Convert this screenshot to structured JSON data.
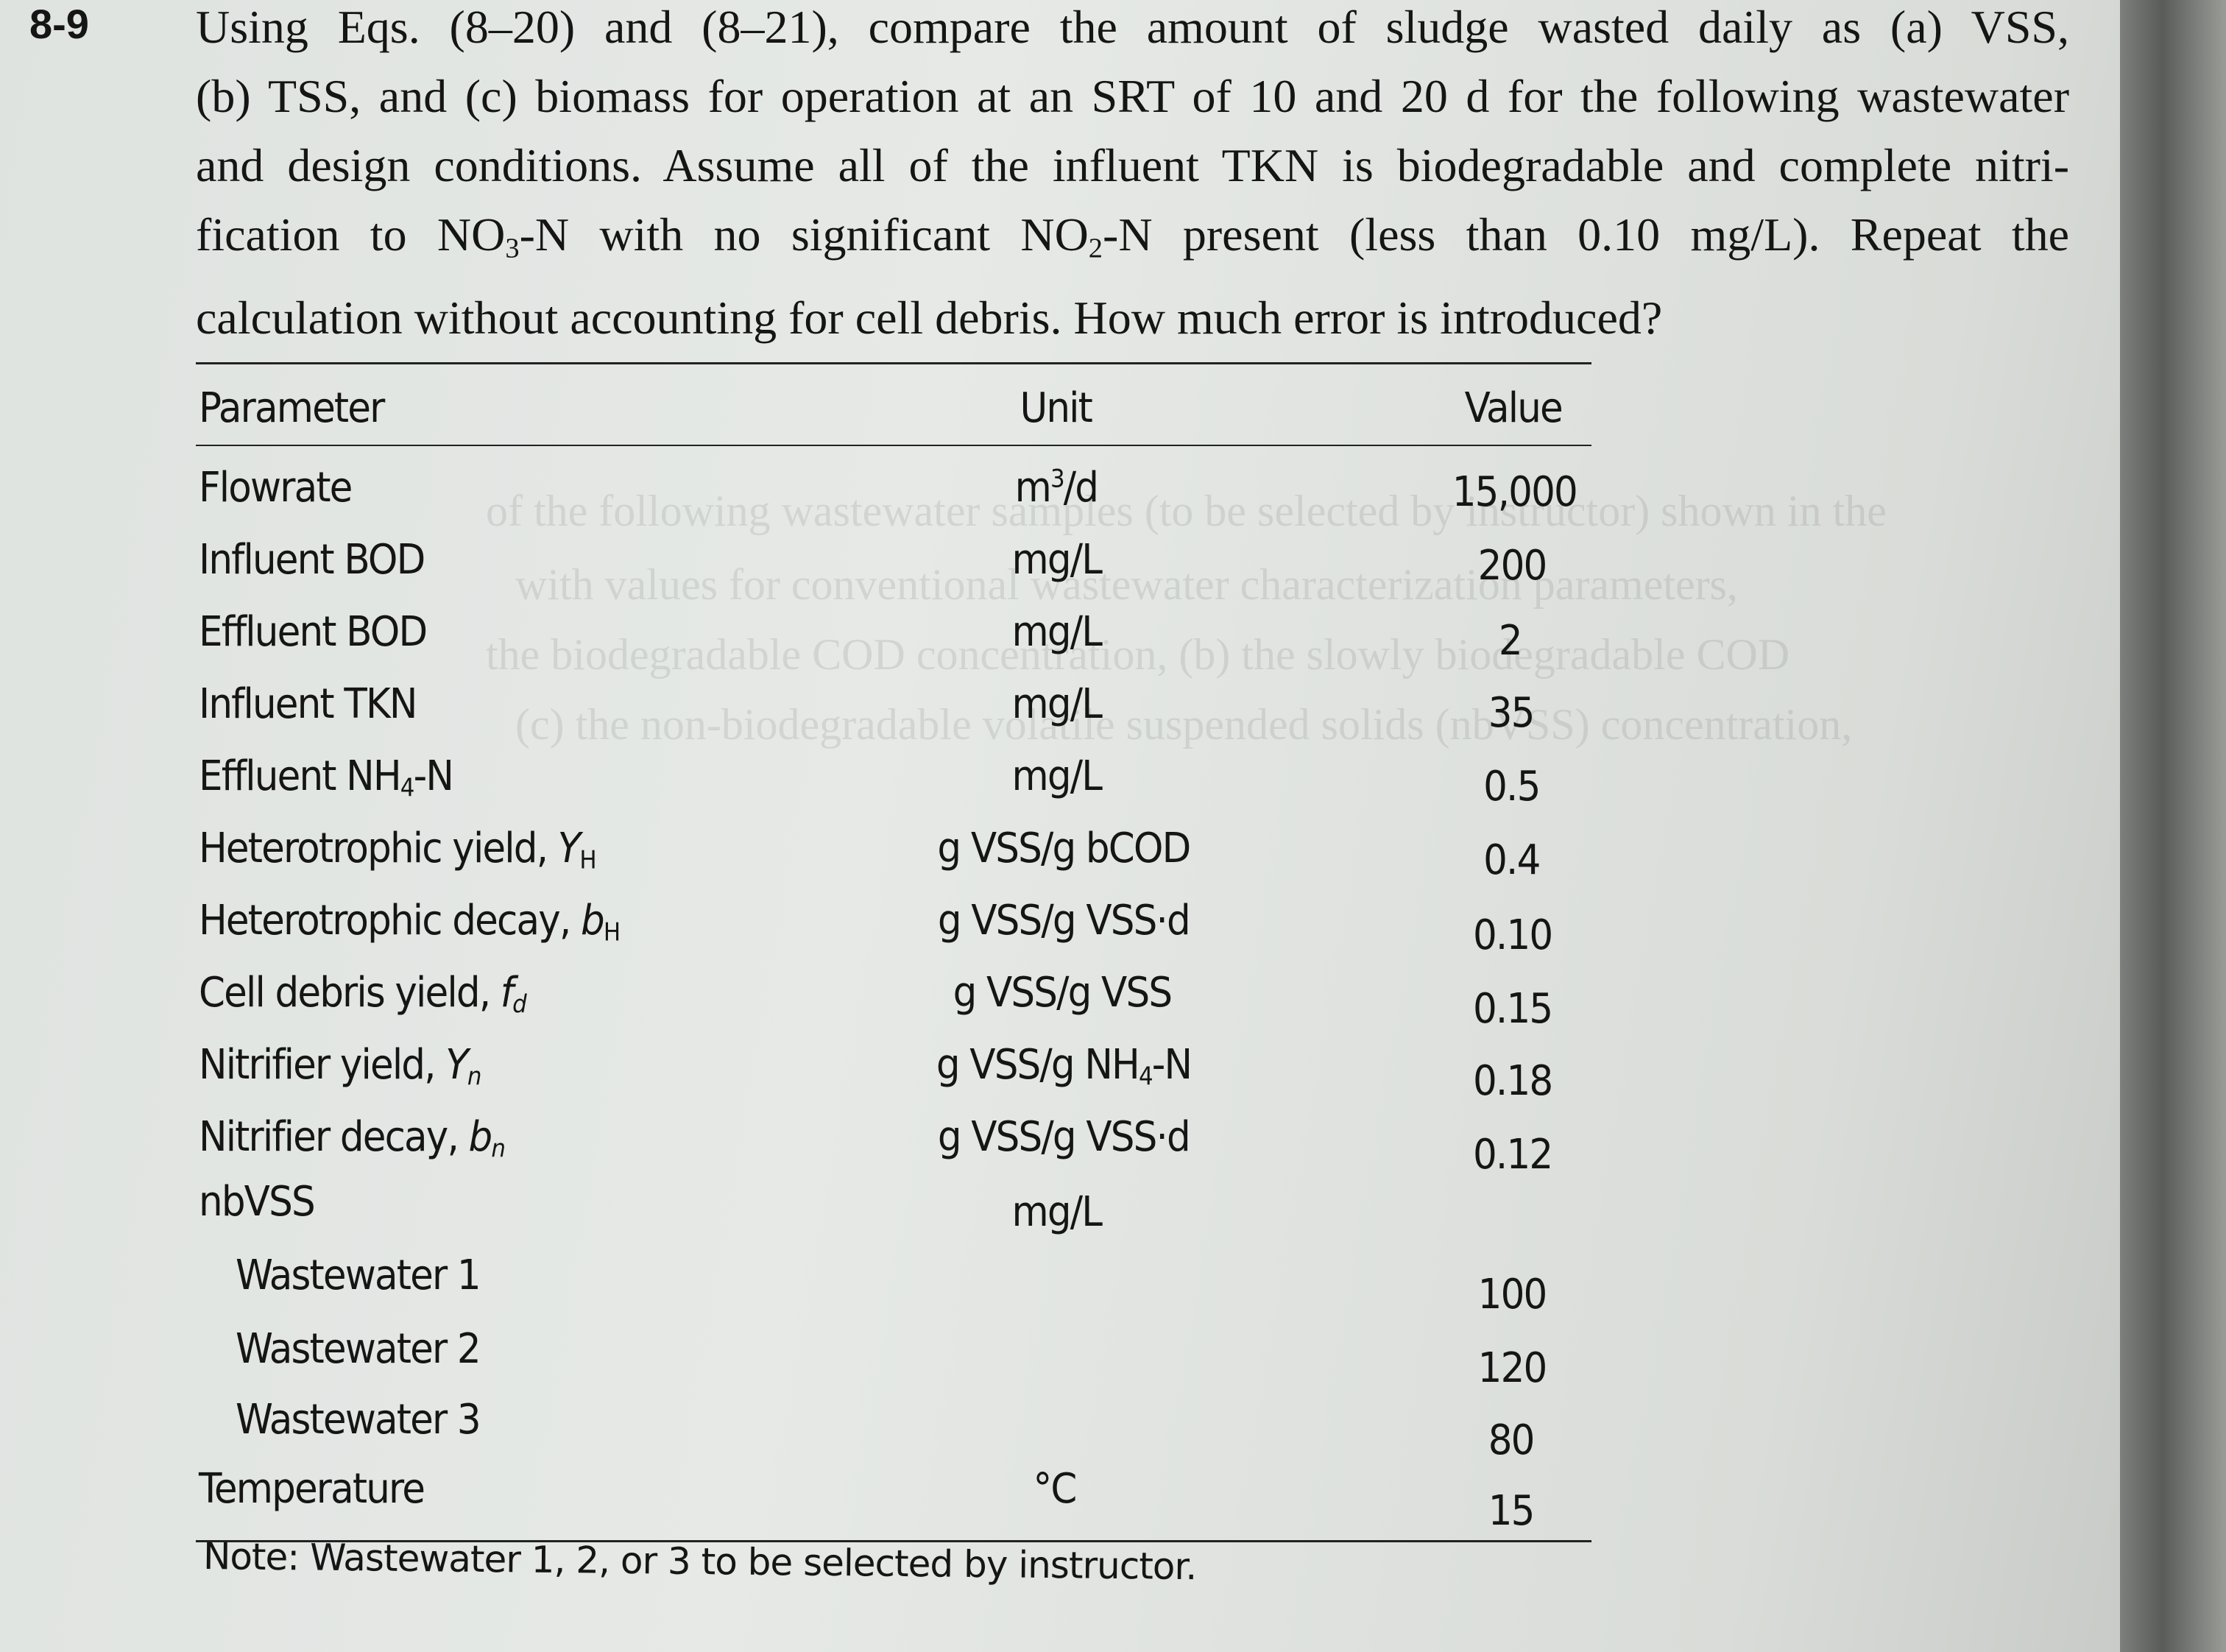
{
  "problem": {
    "number": "8-9",
    "text_lines": [
      [
        "Using Eqs. (8–20) and (8–21), compare the amount of sludge wasted daily as (a) VSS,"
      ],
      [
        "(b) TSS, and (c) biomass for operation at an SRT of 10 and 20 d for the following wastewater"
      ],
      [
        "and design conditions. Assume all of the influent TKN is biodegradable and complete nitri-"
      ],
      [
        "fication to NO",
        "3",
        "-N with no significant NO",
        "2",
        "-N present (less than 0.10 mg/L). Repeat the"
      ],
      [
        "calculation without accounting for cell debris. How much error is introduced?"
      ]
    ]
  },
  "table": {
    "headers": {
      "parameter": "Parameter",
      "unit": "Unit",
      "value": "Value"
    },
    "rows": [
      {
        "label": "Flowrate",
        "sym": "",
        "sub": "",
        "unit": "m",
        "unit_sup": "3",
        "unit_rest": "/d",
        "value": "15,000"
      },
      {
        "label": "Influent BOD",
        "sym": "",
        "sub": "",
        "unit": "mg/L",
        "value": "200"
      },
      {
        "label": "Effluent BOD",
        "sym": "",
        "sub": "",
        "unit": "mg/L",
        "value": "2"
      },
      {
        "label": "Influent TKN",
        "sym": "",
        "sub": "",
        "unit": "mg/L",
        "value": "35"
      },
      {
        "label": "Effluent NH",
        "sym": "",
        "sub": "4",
        "label_rest": "-N",
        "unit": "mg/L",
        "value": "0.5"
      },
      {
        "label": "Heterotrophic yield, ",
        "sym": "Y",
        "sub": "H",
        "unit": "g VSS/g bCOD",
        "value": "0.4"
      },
      {
        "label": "Heterotrophic decay, ",
        "sym": "b",
        "sub": "H",
        "unit": "g VSS/g VSS·d",
        "value": "0.10"
      },
      {
        "label": "Cell debris yield, ",
        "sym": "f",
        "sub": "d",
        "unit": "g VSS/g VSS",
        "value": "0.15"
      },
      {
        "label": "Nitrifier yield, ",
        "sym": "Y",
        "sub": "n",
        "unit": "g VSS/g NH",
        "unit_sub": "4",
        "unit_rest": "-N",
        "value": "0.18"
      },
      {
        "label": "Nitrifier decay, ",
        "sym": "b",
        "sub": "n",
        "unit": "g VSS/g VSS·d",
        "value": "0.12"
      },
      {
        "label": "nbVSS",
        "sym": "",
        "sub": "",
        "unit": "mg/L",
        "value": ""
      },
      {
        "label": "Wastewater 1",
        "indent": true,
        "unit": "",
        "value": "100"
      },
      {
        "label": "Wastewater 2",
        "indent": true,
        "unit": "",
        "value": "120"
      },
      {
        "label": "Wastewater 3",
        "indent": true,
        "unit": "",
        "value": "80"
      },
      {
        "label": "Temperature",
        "sym": "",
        "sub": "",
        "unit": "°C",
        "value": "15"
      }
    ],
    "note": "Note: Wastewater 1, 2, or 3 to be selected by instructor."
  }
}
